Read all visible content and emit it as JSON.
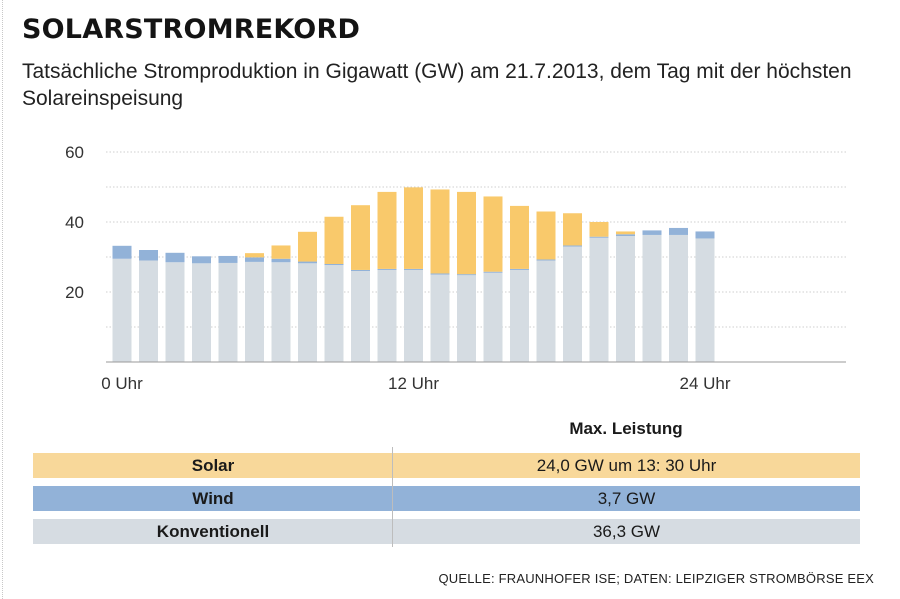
{
  "header": {
    "title": "SOLARSTROMREKORD",
    "subtitle": "Tatsächliche Stromproduktion in Gigawatt (GW) am 21.7.2013, dem Tag mit der höchsten Solareinspeisung"
  },
  "chart_data": {
    "type": "bar",
    "stacked": true,
    "ylim": [
      0,
      60
    ],
    "yticks": [
      20,
      40,
      60
    ],
    "gridlines": [
      10,
      20,
      30,
      40,
      50,
      60
    ],
    "grid": true,
    "xtick_labels": [
      {
        "index": 0,
        "label": "0 Uhr"
      },
      {
        "index": 11,
        "label": "12 Uhr"
      },
      {
        "index": 22,
        "label": "24 Uhr"
      }
    ],
    "categories": [
      "0",
      "1",
      "2",
      "3",
      "4",
      "5",
      "6",
      "7",
      "8",
      "9",
      "10",
      "11",
      "12",
      "13",
      "14",
      "15",
      "16",
      "17",
      "18",
      "19",
      "20",
      "21",
      "22"
    ],
    "series": [
      {
        "key": "konventionell",
        "color": "#d5dce2",
        "values": [
          29.5,
          29.0,
          28.5,
          28.2,
          28.3,
          28.6,
          28.5,
          28.2,
          27.7,
          26.0,
          26.3,
          26.3,
          25.0,
          24.8,
          25.5,
          26.3,
          29.0,
          33.0,
          35.5,
          36.0,
          36.3,
          36.3,
          35.3
        ]
      },
      {
        "key": "wind",
        "color": "#92b2d8",
        "values": [
          3.7,
          3.0,
          2.7,
          2.0,
          2.0,
          1.3,
          1.0,
          0.5,
          0.3,
          0.3,
          0.3,
          0.3,
          0.3,
          0.3,
          0.3,
          0.3,
          0.3,
          0.3,
          0.3,
          0.5,
          1.3,
          2.0,
          2.0
        ]
      },
      {
        "key": "solar",
        "color": "#f9c96b",
        "values": [
          0,
          0,
          0,
          0,
          0,
          1.2,
          3.8,
          8.5,
          13.5,
          18.5,
          22.0,
          23.3,
          24.0,
          23.5,
          21.5,
          18.0,
          13.7,
          9.2,
          4.2,
          0.8,
          0,
          0,
          0
        ]
      }
    ]
  },
  "table": {
    "header": "Max. Leistung",
    "rows": [
      {
        "label": "Solar",
        "value": "24,0 GW um 13: 30 Uhr",
        "color": "#f8d89a"
      },
      {
        "label": "Wind",
        "value": "3,7 GW",
        "color": "#92b2d8"
      },
      {
        "label": "Konventionell",
        "value": "36,3 GW",
        "color": "#d6dce2"
      }
    ]
  },
  "source": "QUELLE: FRAUNHOFER ISE; DATEN: LEIPZIGER STROMBÖRSE EEX"
}
